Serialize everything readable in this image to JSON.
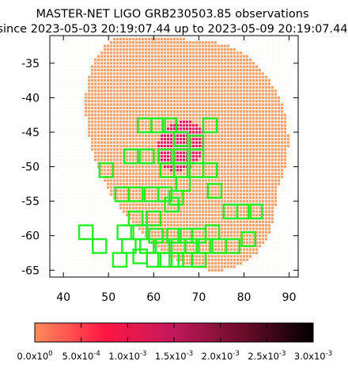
{
  "chart_data": {
    "type": "heatmap",
    "title": "MASTER-NET LIGO GRB230503.85 observations",
    "subtitle": "since 2023-05-03 20:19:07.44 up to 2023-05-09 20:19:07.44",
    "xlabel": "",
    "ylabel": "",
    "xlim": [
      37,
      92
    ],
    "ylim": [
      -66,
      -31
    ],
    "xticks": [
      "40",
      "50",
      "60",
      "70",
      "80",
      "90"
    ],
    "yticks": [
      "-35",
      "-40",
      "-45",
      "-50",
      "-55",
      "-60",
      "-65"
    ],
    "grid": false,
    "probability_map": {
      "description_unit": "probability per pixel",
      "background_level": 5e-05,
      "regions": [
        {
          "name": "low",
          "color": "#f4a06a",
          "value": 0.0001
        },
        {
          "name": "core",
          "color": "#e4135a",
          "value": 0.0007
        }
      ]
    },
    "colorbar": {
      "min": 0,
      "max": 0.003,
      "gradient": [
        "#ff8c5a",
        "#ff1744",
        "#c2185b",
        "#6a0c2a",
        "#000000"
      ],
      "tick_labels": [
        {
          "mantissa": "0.0x10",
          "exp": "0"
        },
        {
          "mantissa": "5.0x10",
          "exp": "-4"
        },
        {
          "mantissa": "1.0x10",
          "exp": "-3"
        },
        {
          "mantissa": "1.5x10",
          "exp": "-3"
        },
        {
          "mantissa": "2.0x10",
          "exp": "-3"
        },
        {
          "mantissa": "2.5x10",
          "exp": "-3"
        },
        {
          "mantissa": "3.0x10",
          "exp": "-3"
        }
      ]
    },
    "field_color": "#22ee22",
    "fields": [
      [
        58.0,
        -44.0
      ],
      [
        61.0,
        -44.0
      ],
      [
        63.5,
        -44.0
      ],
      [
        72.5,
        -44.0
      ],
      [
        66.0,
        -46.0
      ],
      [
        69.5,
        -46.5
      ],
      [
        55.0,
        -48.5
      ],
      [
        58.5,
        -48.5
      ],
      [
        62.5,
        -48.5
      ],
      [
        66.0,
        -48.5
      ],
      [
        69.5,
        -48.5
      ],
      [
        49.5,
        -50.5
      ],
      [
        63.0,
        -50.5
      ],
      [
        66.0,
        -50.5
      ],
      [
        69.5,
        -50.5
      ],
      [
        72.5,
        -50.5
      ],
      [
        66.5,
        -52.5
      ],
      [
        53.0,
        -54.0
      ],
      [
        56.0,
        -54.0
      ],
      [
        59.5,
        -54.0
      ],
      [
        62.5,
        -54.0
      ],
      [
        65.0,
        -54.5
      ],
      [
        73.5,
        -53.5
      ],
      [
        64.0,
        -55.5
      ],
      [
        77.0,
        -56.5
      ],
      [
        80.0,
        -56.5
      ],
      [
        82.5,
        -56.5
      ],
      [
        56.0,
        -57.5
      ],
      [
        60.0,
        -57.5
      ],
      [
        45.0,
        -59.5
      ],
      [
        53.5,
        -59.5
      ],
      [
        57.0,
        -59.5
      ],
      [
        60.5,
        -60.0
      ],
      [
        64.5,
        -60.0
      ],
      [
        67.0,
        -60.0
      ],
      [
        70.0,
        -60.0
      ],
      [
        73.0,
        -59.5
      ],
      [
        81.0,
        -60.5
      ],
      [
        48.0,
        -61.5
      ],
      [
        54.5,
        -61.5
      ],
      [
        58.5,
        -61.5
      ],
      [
        62.0,
        -61.5
      ],
      [
        65.5,
        -61.5
      ],
      [
        68.5,
        -61.5
      ],
      [
        71.0,
        -61.5
      ],
      [
        74.5,
        -61.5
      ],
      [
        77.5,
        -61.5
      ],
      [
        52.5,
        -63.5
      ],
      [
        57.0,
        -63.0
      ],
      [
        60.0,
        -63.5
      ],
      [
        62.5,
        -63.5
      ],
      [
        65.0,
        -63.5
      ],
      [
        67.0,
        -63.5
      ],
      [
        70.0,
        -63.5
      ]
    ]
  }
}
